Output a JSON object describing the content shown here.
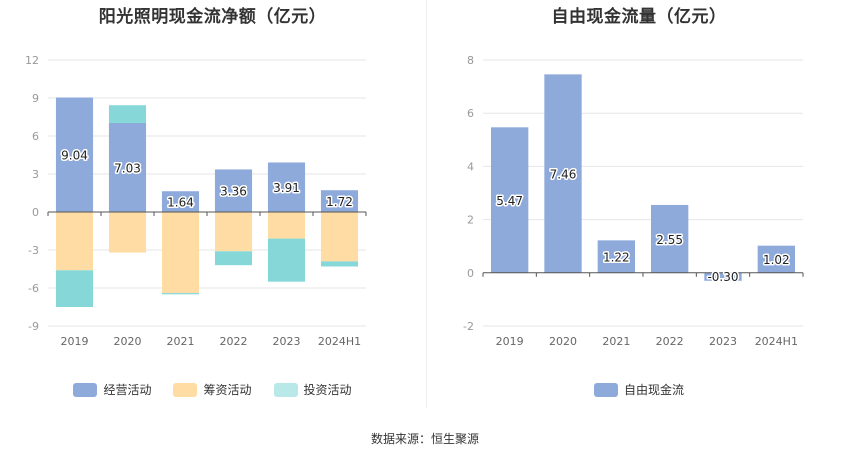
{
  "chart_data": [
    {
      "type": "bar",
      "stacked": true,
      "title": "阳光照明现金流净额（亿元）",
      "categories": [
        "2019",
        "2020",
        "2021",
        "2022",
        "2023",
        "2024H1"
      ],
      "ylim": [
        -9,
        12
      ],
      "yticks": [
        -9,
        -6,
        -3,
        0,
        3,
        6,
        9,
        12
      ],
      "grid": true,
      "legend_position": "bottom",
      "series": [
        {
          "name": "经营活动",
          "color": "#8eaadb",
          "values": [
            9.04,
            7.03,
            1.64,
            3.36,
            3.91,
            1.72
          ],
          "labels": [
            "9.04",
            "7.03",
            "1.64",
            "3.36",
            "3.91",
            "1.72"
          ]
        },
        {
          "name": "筹资活动",
          "color": "#ffdca3",
          "values": [
            -4.6,
            -3.2,
            -6.4,
            -3.1,
            -2.1,
            -3.9
          ]
        },
        {
          "name": "投资活动",
          "color": "#86d8d8",
          "values": [
            -2.9,
            1.4,
            -0.1,
            -1.1,
            -3.4,
            -0.4
          ]
        }
      ]
    },
    {
      "type": "bar",
      "title": "自由现金流量（亿元）",
      "categories": [
        "2019",
        "2020",
        "2021",
        "2022",
        "2023",
        "2024H1"
      ],
      "ylim": [
        -2,
        8
      ],
      "yticks": [
        -2,
        0,
        2,
        4,
        6,
        8
      ],
      "grid": true,
      "legend_position": "bottom",
      "series": [
        {
          "name": "自由现金流",
          "color": "#8eaadb",
          "values": [
            5.47,
            7.46,
            1.22,
            2.55,
            -0.3,
            1.02
          ],
          "labels": [
            "5.47",
            "7.46",
            "1.22",
            "2.55",
            "-0.30",
            "1.02"
          ]
        }
      ]
    }
  ],
  "source": "数据来源：恒生聚源"
}
